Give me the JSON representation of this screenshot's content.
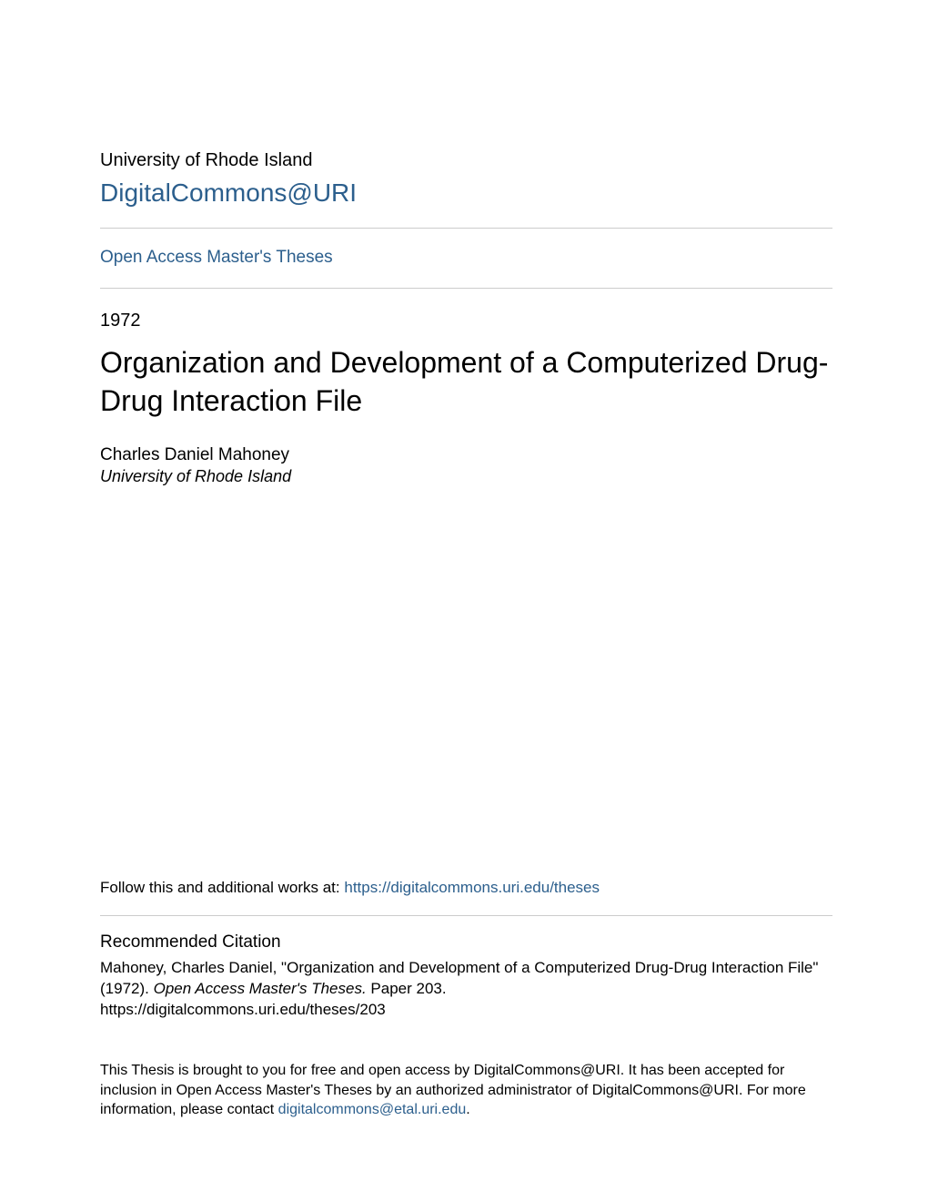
{
  "header": {
    "institution": "University of Rhode Island",
    "repository": "DigitalCommons@URI",
    "collection_link": "Open Access Master's Theses"
  },
  "meta": {
    "year": "1972",
    "title": "Organization and Development of a Computerized Drug-Drug Interaction File",
    "author": "Charles Daniel Mahoney",
    "affiliation": "University of Rhode Island"
  },
  "follow": {
    "prefix": "Follow this and additional works at: ",
    "link_text": "https://digitalcommons.uri.edu/theses"
  },
  "citation": {
    "heading": "Recommended Citation",
    "line1_pre": "Mahoney, Charles Daniel, \"Organization and Development of a Computerized Drug-Drug Interaction File\" (1972). ",
    "line1_ital": "Open Access Master's Theses.",
    "line1_post": " Paper 203.",
    "line2": "https://digitalcommons.uri.edu/theses/203"
  },
  "footer": {
    "text_pre": "This Thesis is brought to you for free and open access by DigitalCommons@URI. It has been accepted for inclusion in Open Access Master's Theses by an authorized administrator of DigitalCommons@URI. For more information, please contact ",
    "email": "digitalcommons@etal.uri.edu",
    "text_post": "."
  },
  "colors": {
    "link": "#2c5f8d",
    "text": "#000000",
    "rule": "#cccccc",
    "background": "#ffffff"
  }
}
